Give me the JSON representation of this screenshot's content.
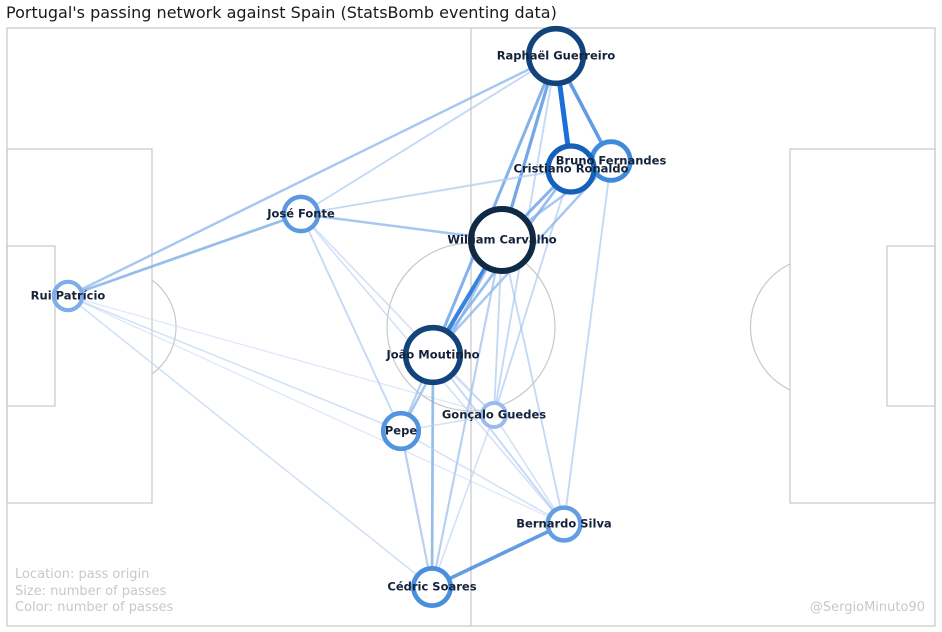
{
  "title": "Portugal's passing network against Spain (StatsBomb eventing data)",
  "legend": {
    "location": "Location: pass origin",
    "size": "Size: number of passes",
    "color": "Color: number of passes"
  },
  "credit": "@SergioMinuto90",
  "colors": {
    "pitch_line": "#c8c8c8",
    "edge_low": "#d4e3f8",
    "edge_high": "#1a6fd8",
    "node_low": "#9cbaf0",
    "node_high": "#0f2a45",
    "label": "#15233a"
  },
  "players": [
    {
      "id": "guerreiro",
      "name": "Raphaël Guerreiro",
      "passes": 60
    },
    {
      "id": "fernandes",
      "name": "Bruno Fernandes",
      "passes": 38
    },
    {
      "id": "ronaldo",
      "name": "Cristiano Ronaldo",
      "passes": 48
    },
    {
      "id": "fonte",
      "name": "José Fonte",
      "passes": 32
    },
    {
      "id": "carvalho",
      "name": "William Carvalho",
      "passes": 70
    },
    {
      "id": "patricio",
      "name": "Rui Patrício",
      "passes": 24
    },
    {
      "id": "moutinho",
      "name": "João Moutinho",
      "passes": 60
    },
    {
      "id": "pepe",
      "name": "Pepe",
      "passes": 34
    },
    {
      "id": "guedes",
      "name": "Gonçalo Guedes",
      "passes": 18
    },
    {
      "id": "silva",
      "name": "Bernardo Silva",
      "passes": 30
    },
    {
      "id": "soares",
      "name": "Cédric Soares",
      "passes": 36
    }
  ],
  "passes": [
    {
      "from": "guerreiro",
      "to": "ronaldo",
      "count": 14
    },
    {
      "from": "guerreiro",
      "to": "fernandes",
      "count": 9
    },
    {
      "from": "guerreiro",
      "to": "carvalho",
      "count": 8
    },
    {
      "from": "guerreiro",
      "to": "moutinho",
      "count": 7
    },
    {
      "from": "guerreiro",
      "to": "patricio",
      "count": 5
    },
    {
      "from": "guerreiro",
      "to": "fonte",
      "count": 3
    },
    {
      "from": "guerreiro",
      "to": "guedes",
      "count": 3
    },
    {
      "from": "ronaldo",
      "to": "carvalho",
      "count": 7
    },
    {
      "from": "ronaldo",
      "to": "moutinho",
      "count": 6
    },
    {
      "from": "ronaldo",
      "to": "fernandes",
      "count": 6
    },
    {
      "from": "ronaldo",
      "to": "fonte",
      "count": 2
    },
    {
      "from": "ronaldo",
      "to": "guedes",
      "count": 3
    },
    {
      "from": "fernandes",
      "to": "carvalho",
      "count": 5
    },
    {
      "from": "fernandes",
      "to": "moutinho",
      "count": 5
    },
    {
      "from": "fernandes",
      "to": "silva",
      "count": 3
    },
    {
      "from": "fernandes",
      "to": "fonte",
      "count": 2
    },
    {
      "from": "carvalho",
      "to": "moutinho",
      "count": 11
    },
    {
      "from": "carvalho",
      "to": "fonte",
      "count": 5
    },
    {
      "from": "carvalho",
      "to": "pepe",
      "count": 5
    },
    {
      "from": "carvalho",
      "to": "guedes",
      "count": 3
    },
    {
      "from": "carvalho",
      "to": "silva",
      "count": 3
    },
    {
      "from": "carvalho",
      "to": "soares",
      "count": 4
    },
    {
      "from": "fonte",
      "to": "patricio",
      "count": 6
    },
    {
      "from": "fonte",
      "to": "pepe",
      "count": 3
    },
    {
      "from": "fonte",
      "to": "guedes",
      "count": 2
    },
    {
      "from": "fonte",
      "to": "silva",
      "count": 2
    },
    {
      "from": "patricio",
      "to": "soares",
      "count": 2
    },
    {
      "from": "patricio",
      "to": "guedes",
      "count": 1
    },
    {
      "from": "patricio",
      "to": "pepe",
      "count": 2
    },
    {
      "from": "patricio",
      "to": "silva",
      "count": 1
    },
    {
      "from": "moutinho",
      "to": "pepe",
      "count": 4
    },
    {
      "from": "moutinho",
      "to": "soares",
      "count": 6
    },
    {
      "from": "moutinho",
      "to": "guedes",
      "count": 2
    },
    {
      "from": "moutinho",
      "to": "silva",
      "count": 3
    },
    {
      "from": "pepe",
      "to": "soares",
      "count": 4
    },
    {
      "from": "pepe",
      "to": "guedes",
      "count": 2
    },
    {
      "from": "pepe",
      "to": "silva",
      "count": 2
    },
    {
      "from": "guedes",
      "to": "soares",
      "count": 2
    },
    {
      "from": "guedes",
      "to": "silva",
      "count": 2
    },
    {
      "from": "silva",
      "to": "soares",
      "count": 9
    }
  ]
}
